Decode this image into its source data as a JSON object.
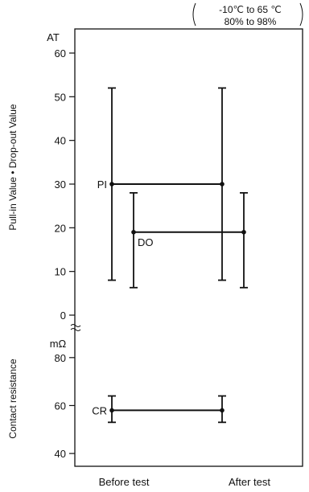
{
  "chart_data": {
    "type": "line",
    "x_categories": [
      "Before test",
      "After test"
    ],
    "conditions": [
      "-10℃ to 65 ℃",
      "80% to 98%"
    ],
    "panels": [
      {
        "name": "pull-in-drop-out",
        "unit": "AT",
        "ylabel": "Pull-in Value • Drop-out Value",
        "ylim": [
          0,
          60
        ],
        "yticks": [
          0,
          10,
          20,
          30,
          40,
          50,
          60
        ],
        "series": [
          {
            "name": "PI",
            "points": [
              {
                "x": "Before test",
                "mean": 30,
                "min": 8,
                "max": 52
              },
              {
                "x": "After test",
                "mean": 30,
                "min": 8,
                "max": 52
              }
            ]
          },
          {
            "name": "DO",
            "points": [
              {
                "x": "Before test",
                "mean": 19,
                "min": 6.3,
                "max": 28
              },
              {
                "x": "After test",
                "mean": 19,
                "min": 6.3,
                "max": 28
              }
            ]
          }
        ]
      },
      {
        "name": "contact-resistance",
        "unit": "mΩ",
        "ylabel": "Contact resistance",
        "ylim": [
          35,
          90
        ],
        "yticks": [
          40,
          60,
          80
        ],
        "series": [
          {
            "name": "CR",
            "points": [
              {
                "x": "Before test",
                "mean": 58,
                "min": 53,
                "max": 64
              },
              {
                "x": "After test",
                "mean": 58,
                "min": 53,
                "max": 64
              }
            ]
          }
        ]
      }
    ]
  }
}
